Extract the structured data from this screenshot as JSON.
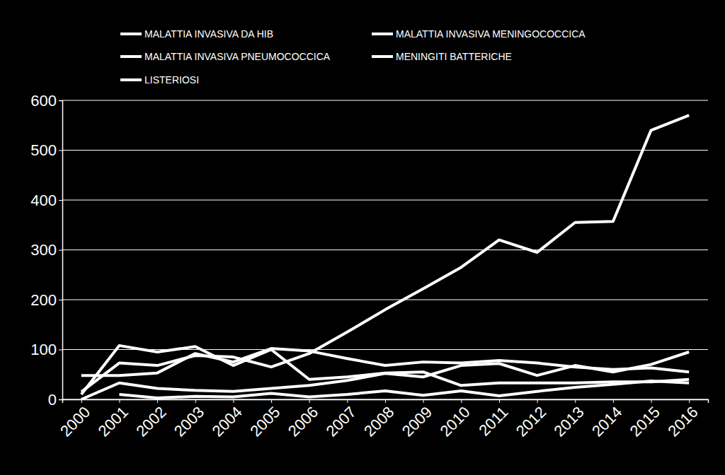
{
  "chart_data": {
    "type": "line",
    "categories": [
      "2000",
      "2001",
      "2002",
      "2003",
      "2004",
      "2005",
      "2006",
      "2007",
      "2008",
      "2009",
      "2010",
      "2011",
      "2012",
      "2013",
      "2014",
      "2015",
      "2016"
    ],
    "series": [
      {
        "name": "MALATTIA INVASIVA DA HIB",
        "color": "#ffffff",
        "values": [
          null,
          10,
          3,
          6,
          5,
          12,
          5,
          10,
          17,
          8,
          17,
          7,
          16,
          24,
          30,
          37,
          33
        ]
      },
      {
        "name": "MALATTIA INVASIVA MENINGOCOCCICA",
        "color": "#ffffff",
        "values": [
          10,
          108,
          95,
          106,
          68,
          100,
          40,
          45,
          53,
          55,
          28,
          33,
          33,
          33,
          35,
          35,
          40
        ]
      },
      {
        "name": "MALATTIA INVASIVA PNEUMOCOCCICA",
        "color": "#ffffff",
        "values": [
          15,
          73,
          68,
          88,
          85,
          65,
          92,
          135,
          180,
          222,
          265,
          320,
          295,
          355,
          357,
          540,
          570
        ]
      },
      {
        "name": "MENINGITI BATTERICHE",
        "color": "#ffffff",
        "values": [
          48,
          48,
          53,
          92,
          75,
          102,
          97,
          82,
          68,
          75,
          73,
          78,
          73,
          65,
          60,
          63,
          55
        ]
      },
      {
        "name": "LISTERIOSI",
        "color": "#ffffff",
        "values": [
          0,
          33,
          22,
          18,
          16,
          22,
          28,
          38,
          52,
          45,
          68,
          72,
          48,
          68,
          55,
          70,
          95
        ]
      }
    ],
    "ylim": [
      0,
      600
    ],
    "yticks": [
      0,
      100,
      200,
      300,
      400,
      500,
      600
    ],
    "grid": true,
    "legend": "top"
  }
}
